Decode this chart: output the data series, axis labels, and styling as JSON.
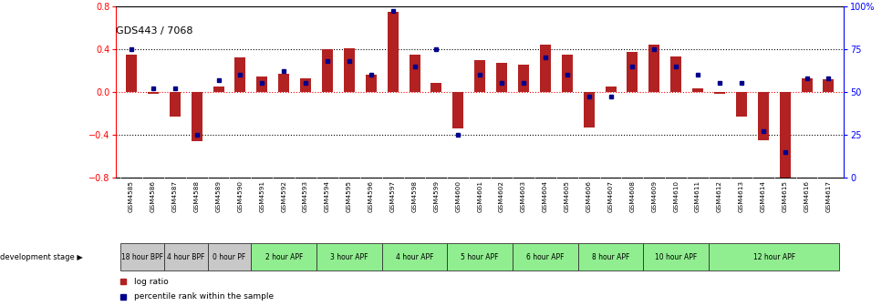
{
  "title": "GDS443 / 7068",
  "gsm_ids": [
    "GSM4585",
    "GSM4586",
    "GSM4587",
    "GSM4588",
    "GSM4589",
    "GSM4590",
    "GSM4591",
    "GSM4592",
    "GSM4593",
    "GSM4594",
    "GSM4595",
    "GSM4596",
    "GSM4597",
    "GSM4598",
    "GSM4599",
    "GSM4600",
    "GSM4601",
    "GSM4602",
    "GSM4603",
    "GSM4604",
    "GSM4605",
    "GSM4606",
    "GSM4607",
    "GSM4608",
    "GSM4609",
    "GSM4610",
    "GSM4611",
    "GSM4612",
    "GSM4613",
    "GSM4614",
    "GSM4615",
    "GSM4616",
    "GSM4617"
  ],
  "log_ratio": [
    0.35,
    -0.02,
    -0.23,
    -0.46,
    0.05,
    0.32,
    0.14,
    0.17,
    0.13,
    0.4,
    0.41,
    0.16,
    0.75,
    0.35,
    0.08,
    -0.34,
    0.3,
    0.27,
    0.25,
    0.44,
    0.35,
    -0.33,
    0.05,
    0.37,
    0.44,
    0.33,
    0.03,
    -0.02,
    -0.23,
    -0.45,
    -0.87,
    0.13,
    0.12
  ],
  "percentile": [
    75,
    52,
    52,
    25,
    57,
    60,
    55,
    62,
    55,
    68,
    68,
    60,
    97,
    65,
    75,
    25,
    60,
    55,
    55,
    70,
    60,
    47,
    47,
    65,
    75,
    65,
    60,
    55,
    55,
    27,
    15,
    58,
    58
  ],
  "stages": [
    {
      "label": "18 hour BPF",
      "start": 0,
      "end": 2,
      "color": "#c8c8c8"
    },
    {
      "label": "4 hour BPF",
      "start": 2,
      "end": 4,
      "color": "#c8c8c8"
    },
    {
      "label": "0 hour PF",
      "start": 4,
      "end": 6,
      "color": "#c8c8c8"
    },
    {
      "label": "2 hour APF",
      "start": 6,
      "end": 9,
      "color": "#90ee90"
    },
    {
      "label": "3 hour APF",
      "start": 9,
      "end": 12,
      "color": "#90ee90"
    },
    {
      "label": "4 hour APF",
      "start": 12,
      "end": 15,
      "color": "#90ee90"
    },
    {
      "label": "5 hour APF",
      "start": 15,
      "end": 18,
      "color": "#90ee90"
    },
    {
      "label": "6 hour APF",
      "start": 18,
      "end": 21,
      "color": "#90ee90"
    },
    {
      "label": "8 hour APF",
      "start": 21,
      "end": 24,
      "color": "#90ee90"
    },
    {
      "label": "10 hour APF",
      "start": 24,
      "end": 27,
      "color": "#90ee90"
    },
    {
      "label": "12 hour APF",
      "start": 27,
      "end": 33,
      "color": "#90ee90"
    }
  ],
  "bar_color": "#b22222",
  "dot_color": "#00008b",
  "ylim_left": [
    -0.8,
    0.8
  ],
  "ylim_right": [
    0,
    100
  ],
  "yticks_left": [
    -0.8,
    -0.4,
    0.0,
    0.4,
    0.8
  ],
  "yticks_right_vals": [
    0,
    25,
    50,
    75,
    100
  ],
  "yticks_right_labels": [
    "0",
    "25",
    "50",
    "75",
    "100%"
  ],
  "hlines_dotted": [
    -0.4,
    0.4
  ],
  "hline_red": 0.0,
  "legend_log_ratio": "log ratio",
  "legend_percentile": "percentile rank within the sample",
  "dev_stage_label": "development stage",
  "gsm_strip_color": "#d4d4d4",
  "title_fontsize": 8,
  "bar_width": 0.5
}
